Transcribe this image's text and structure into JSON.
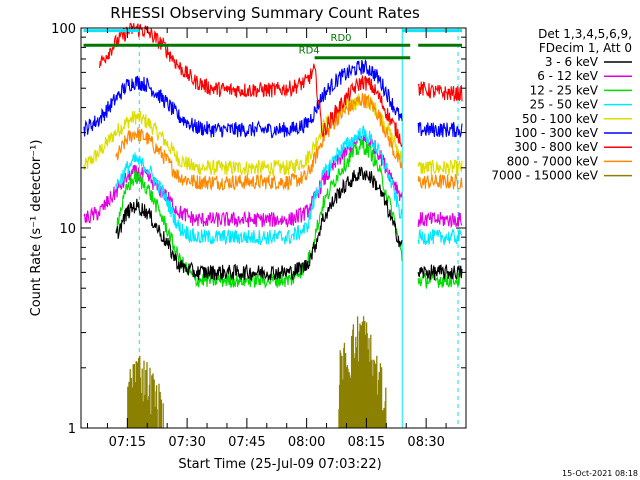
{
  "chart_data": {
    "type": "line",
    "title": "RHESSI Observing Summary Count Rates",
    "xlabel": "Start Time (25-Jul-09 07:03:22)",
    "ylabel": "Count Rate (s⁻¹ detector⁻¹)",
    "y_scale": "log",
    "ylim": [
      1,
      100
    ],
    "y_ticks": [
      {
        "value": 1,
        "label": "1"
      },
      {
        "value": 10,
        "label": "10"
      },
      {
        "value": 100,
        "label": "100"
      }
    ],
    "xlim": [
      "07:03:22",
      "08:40:00"
    ],
    "x_ticks": [
      {
        "value": "07:15",
        "label": "07:15"
      },
      {
        "value": "07:30",
        "label": "07:30"
      },
      {
        "value": "07:45",
        "label": "07:45"
      },
      {
        "value": "08:00",
        "label": "08:00"
      },
      {
        "value": "08:15",
        "label": "08:15"
      },
      {
        "value": "08:30",
        "label": "08:30"
      }
    ],
    "header_lines": [
      "Det 1,3,4,5,6,9,",
      "FDecim 1, Att 0"
    ],
    "x": [
      "07:04",
      "07:08",
      "07:12",
      "07:15",
      "07:17",
      "07:20",
      "07:24",
      "07:28",
      "07:32",
      "07:36",
      "07:40",
      "07:44",
      "07:48",
      "07:52",
      "07:56",
      "08:00",
      "08:02",
      "08:04",
      "08:08",
      "08:12",
      "08:14",
      "08:16",
      "08:18",
      "08:20",
      "08:22",
      "08:24",
      "08:26",
      "08:28",
      "08:32",
      "08:36",
      "08:39"
    ],
    "series": [
      {
        "name": "3 - 6 keV",
        "color": "#000000",
        "values": [
          null,
          null,
          9,
          12,
          13,
          12,
          9,
          6.5,
          6,
          6,
          6,
          6,
          6,
          6,
          6,
          6.5,
          8,
          11,
          15,
          18,
          19,
          18,
          16,
          13,
          10,
          8,
          null,
          6,
          6,
          6,
          6
        ]
      },
      {
        "name": "6 - 12 keV",
        "color": "#e000e0",
        "values": [
          11,
          12,
          15,
          18,
          19,
          18,
          15,
          12,
          11,
          11,
          11,
          11,
          11,
          11,
          11,
          12,
          14,
          17,
          22,
          26,
          28,
          27,
          24,
          20,
          17,
          14,
          null,
          11,
          11,
          11,
          11
        ]
      },
      {
        "name": "12 - 25 keV",
        "color": "#00dd00",
        "values": [
          null,
          null,
          10,
          16,
          18,
          16,
          11,
          7,
          5.5,
          5.5,
          5.5,
          5.5,
          5.5,
          5.5,
          5.5,
          6.5,
          9,
          13,
          19,
          24,
          26,
          24,
          20,
          15,
          11,
          7,
          null,
          5.5,
          5.5,
          5.5,
          5.5
        ]
      },
      {
        "name": "25 - 50 keV",
        "color": "#00e8ff",
        "values": [
          null,
          null,
          16,
          20,
          22,
          20,
          15,
          10,
          9,
          9,
          9,
          9,
          9,
          9,
          9,
          10,
          14,
          18,
          24,
          28,
          30,
          28,
          24,
          20,
          15,
          11,
          null,
          9,
          9,
          9,
          9
        ]
      },
      {
        "name": "50 - 100 keV",
        "color": "#dddd00",
        "values": [
          20,
          24,
          30,
          34,
          36,
          34,
          28,
          22,
          20,
          20,
          20,
          20,
          20,
          20,
          20,
          22,
          26,
          32,
          38,
          42,
          44,
          42,
          38,
          32,
          27,
          22,
          null,
          20,
          20,
          20,
          20
        ]
      },
      {
        "name": "100 - 300 keV",
        "color": "#0000ff",
        "values": [
          31,
          35,
          44,
          52,
          54,
          52,
          44,
          36,
          32,
          31,
          31,
          31,
          31,
          31,
          31,
          33,
          38,
          46,
          56,
          62,
          64,
          62,
          56,
          48,
          40,
          34,
          null,
          31,
          31,
          31,
          31
        ]
      },
      {
        "name": "300 - 800 keV",
        "color": "#ff0000",
        "values": [
          null,
          66,
          84,
          96,
          100,
          96,
          82,
          64,
          54,
          50,
          49,
          49,
          49,
          49,
          50,
          54,
          62,
          30,
          40,
          50,
          54,
          52,
          46,
          38,
          32,
          27,
          null,
          50,
          48,
          47,
          47
        ]
      },
      {
        "name": "800 - 7000 keV",
        "color": "#ff8800",
        "values": [
          null,
          null,
          22,
          28,
          30,
          28,
          23,
          18,
          17,
          17,
          17,
          17,
          17,
          17,
          17,
          18,
          22,
          28,
          36,
          42,
          44,
          42,
          37,
          30,
          24,
          20,
          null,
          17,
          17,
          17,
          17
        ]
      },
      {
        "name": "7000 - 15000 keV",
        "color": "#8b8000",
        "values": [
          null,
          null,
          null,
          1.3,
          1.9,
          1.6,
          1.1,
          null,
          null,
          null,
          null,
          null,
          null,
          null,
          null,
          null,
          null,
          null,
          1.7,
          2.5,
          3,
          2.2,
          1.6,
          1.2,
          null,
          null,
          null,
          null,
          null,
          null,
          null
        ]
      }
    ],
    "vertical_markers": [
      {
        "time": "07:18",
        "style": "dashed",
        "color": "#00e8ff"
      },
      {
        "time": "08:24",
        "style": "solid",
        "color": "#00e8ff"
      },
      {
        "time": "08:38",
        "style": "dashed",
        "color": "#00e8ff"
      }
    ],
    "state_bars": [
      {
        "label": "",
        "start": "07:04",
        "end": "07:18",
        "color": "#00e8ff",
        "level": 97
      },
      {
        "label": "",
        "start": "08:24",
        "end": "08:39",
        "color": "#00e8ff",
        "level": 97
      },
      {
        "label": "RD0",
        "start": "07:04",
        "end": "08:26",
        "color": "#007700",
        "level": 82
      },
      {
        "label": "",
        "start": "08:28",
        "end": "08:39",
        "color": "#007700",
        "level": 82
      },
      {
        "label": "RD4",
        "start": "08:02",
        "end": "08:26",
        "color": "#007700",
        "level": 71
      }
    ],
    "legend_position": "right",
    "grid": false,
    "footer": "15-Oct-2021 08:18"
  }
}
